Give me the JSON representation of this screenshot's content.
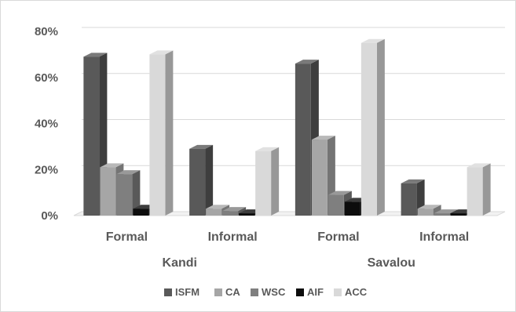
{
  "chart_data": {
    "type": "bar",
    "style": "3d-clustered",
    "ylim": [
      0,
      80
    ],
    "ytick_values": [
      0,
      20,
      40,
      60,
      80
    ],
    "ytick_labels": [
      "0%",
      "20%",
      "40%",
      "60%",
      "80%"
    ],
    "grid": true,
    "legend_position": "bottom",
    "categories": [
      {
        "label": "Formal",
        "group": "Kandi"
      },
      {
        "label": "Informal",
        "group": "Kandi"
      },
      {
        "label": "Formal",
        "group": "Savalou"
      },
      {
        "label": "Informal",
        "group": "Savalou"
      }
    ],
    "groups": [
      "Kandi",
      "Savalou"
    ],
    "series": [
      {
        "name": "ISFM",
        "color": "#595959",
        "values": [
          69,
          29,
          66,
          14
        ]
      },
      {
        "name": "CA",
        "color": "#a6a6a6",
        "values": [
          21,
          3,
          33,
          3
        ]
      },
      {
        "name": "WSC",
        "color": "#7f7f7f",
        "values": [
          18,
          2,
          9,
          1
        ]
      },
      {
        "name": "AIF",
        "color": "#0d0d0d",
        "values": [
          3,
          1,
          6,
          1
        ]
      },
      {
        "name": "ACC",
        "color": "#d9d9d9",
        "values": [
          70,
          28,
          75,
          21
        ]
      }
    ]
  }
}
